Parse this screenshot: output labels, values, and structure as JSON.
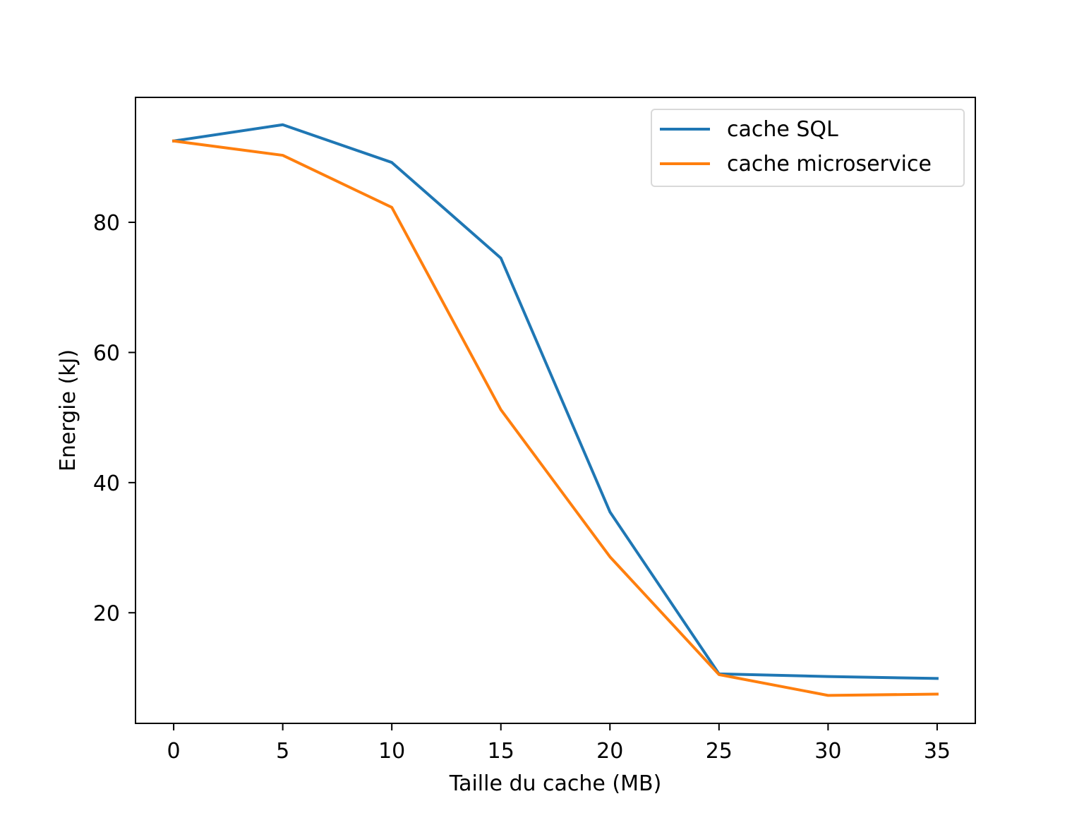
{
  "chart_data": {
    "type": "line",
    "title": "",
    "xlabel": "Taille du cache (MB)",
    "ylabel": "Energie (kJ)",
    "x": [
      0,
      5,
      10,
      15,
      20,
      25,
      30,
      35
    ],
    "xticks": [
      0,
      5,
      10,
      15,
      20,
      25,
      30,
      35
    ],
    "yticks": [
      20,
      40,
      60,
      80
    ],
    "xlim": [
      -1.75,
      36.75
    ],
    "ylim": [
      3.0,
      99.2
    ],
    "grid": false,
    "legend_position": "upper-right",
    "series": [
      {
        "name": "cache SQL",
        "color": "#1f77b4",
        "values": [
          92.5,
          95.0,
          89.2,
          74.5,
          35.5,
          10.6,
          10.2,
          9.9
        ]
      },
      {
        "name": "cache microservice",
        "color": "#ff7f0e",
        "values": [
          92.5,
          90.3,
          82.3,
          51.2,
          28.6,
          10.5,
          7.3,
          7.5
        ]
      }
    ]
  }
}
